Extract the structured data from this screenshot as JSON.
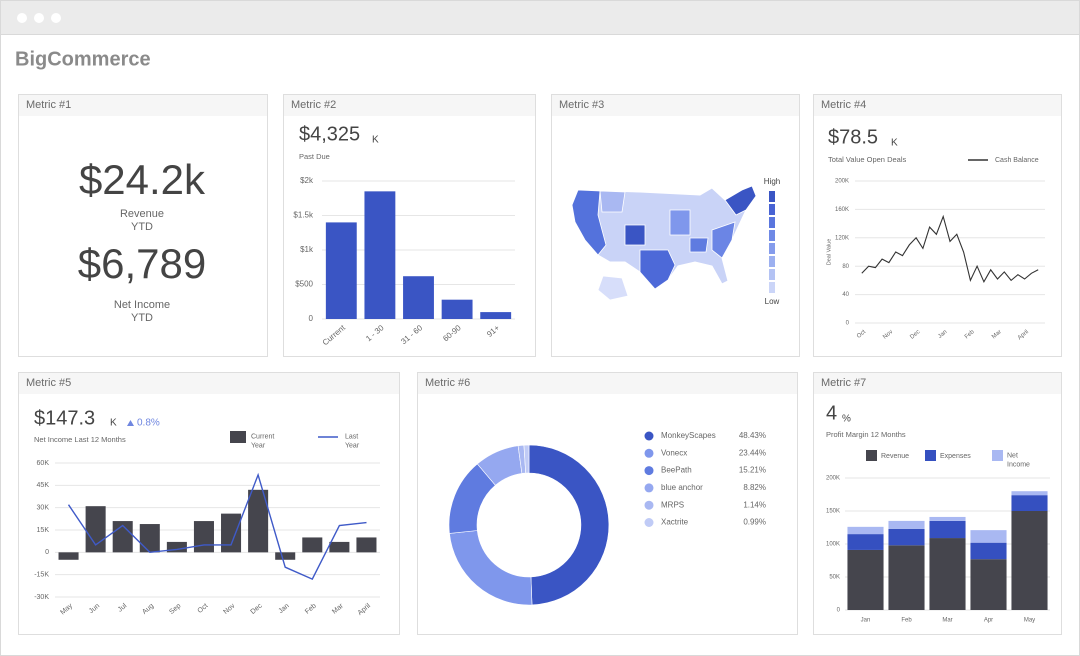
{
  "window": {
    "app_title": "BigCommerce"
  },
  "cards": [
    {
      "title": "Metric #1"
    },
    {
      "title": "Metric #2"
    },
    {
      "title": "Metric #3"
    },
    {
      "title": "Metric #4"
    },
    {
      "title": "Metric #5"
    },
    {
      "title": "Metric #6"
    },
    {
      "title": "Metric #7"
    }
  ],
  "metric1": {
    "items": [
      {
        "value": "$24.2k",
        "label": "Revenue",
        "sublabel": "YTD"
      },
      {
        "value": "$6,789",
        "label": "Net Income",
        "sublabel": "YTD"
      }
    ]
  },
  "map": {
    "legend_high": "High",
    "legend_low": "Low"
  },
  "chart_data": [
    {
      "type": "bar",
      "headline": "$4,325",
      "headline_unit": "K",
      "subtitle": "Past Due",
      "categories": [
        "Current",
        "1 - 30",
        "31 - 60",
        "60-90",
        "91+"
      ],
      "values": [
        1400,
        1850,
        620,
        280,
        100
      ],
      "color": "#3a55c4",
      "ylim": [
        0,
        2000
      ],
      "yticks": [
        0,
        {
          "value": 500,
          "label": "$500"
        },
        {
          "value": 1000,
          "label": "$1k"
        },
        {
          "value": 1500,
          "label": "$1.5k"
        },
        {
          "value": 2000,
          "label": "$2k"
        }
      ],
      "grid": true
    },
    {
      "type": "line",
      "headline": "$78.5",
      "headline_unit": "K",
      "subtitle": "Total Value Open Deals",
      "y_label": "Deal Value",
      "x": [
        0,
        0.25,
        0.5,
        0.75,
        1,
        1.25,
        1.5,
        1.75,
        2,
        2.25,
        2.5,
        2.75,
        3,
        3.25,
        3.5,
        3.75,
        4,
        4.25,
        4.5,
        4.75,
        5,
        5.25,
        5.5,
        5.75,
        6,
        6.25,
        6.5
      ],
      "series": [
        {
          "name": "Cash Balance",
          "color": "#333333",
          "values": [
            70,
            80,
            78,
            90,
            85,
            100,
            95,
            110,
            120,
            105,
            135,
            125,
            150,
            115,
            125,
            100,
            60,
            80,
            58,
            75,
            62,
            72,
            60,
            68,
            62,
            70,
            75
          ]
        }
      ],
      "xlim": [
        -0.25,
        6.75
      ],
      "xticks": [
        {
          "value": 0,
          "label": "Oct"
        },
        {
          "value": 1,
          "label": "Nov"
        },
        {
          "value": 2,
          "label": "Dec"
        },
        {
          "value": 3,
          "label": "Jan"
        },
        {
          "value": 4,
          "label": "Feb"
        },
        {
          "value": 5,
          "label": "Mar"
        },
        {
          "value": 6,
          "label": "April"
        }
      ],
      "ylim": [
        0,
        200
      ],
      "yticks": [
        0,
        40,
        80,
        {
          "value": 120,
          "label": "120K"
        },
        {
          "value": 160,
          "label": "160K"
        },
        {
          "value": 200,
          "label": "200K"
        }
      ],
      "grid": true
    },
    {
      "type": "bar",
      "headline": "$147.3",
      "headline_unit": "K",
      "change": "0.8%",
      "subtitle": "Net Income Last 12 Months",
      "categories": [
        "May",
        "Jun",
        "Jul",
        "Aug",
        "Sep",
        "Oct",
        "Nov",
        "Dec",
        "Jan",
        "Feb",
        "Mar",
        "April"
      ],
      "series": [
        {
          "name": "Current Year",
          "type": "bar",
          "color": "#45454d",
          "values": [
            -5,
            31,
            21,
            19,
            7,
            21,
            26,
            42,
            -5,
            10,
            7,
            10
          ]
        },
        {
          "name": "Last Year",
          "type": "line",
          "color": "#3f5ac8",
          "values": [
            32,
            5,
            18,
            0,
            2,
            5,
            5,
            52,
            -10,
            -18,
            18,
            20
          ]
        }
      ],
      "ylim": [
        -30,
        60
      ],
      "yticks": [
        {
          "value": -30,
          "label": "-30K"
        },
        {
          "value": -15,
          "label": "-15K"
        },
        0,
        {
          "value": 15,
          "label": "15K"
        },
        {
          "value": 30,
          "label": "30K"
        },
        {
          "value": 45,
          "label": "45K"
        },
        {
          "value": 60,
          "label": "60K"
        }
      ],
      "grid": true
    },
    {
      "type": "donut",
      "categories": [
        "MonkeyScapes",
        "Vonecx",
        "BeePath",
        "blue anchor",
        "MRPS",
        "Xactrite"
      ],
      "values": [
        48.43,
        23.44,
        15.21,
        8.82,
        1.14,
        0.99
      ],
      "value_labels": [
        "48.43%",
        "23.44%",
        "15.21%",
        "8.82%",
        "1.14%",
        "0.99%"
      ],
      "colors": [
        "#3a55c4",
        "#7f97ec",
        "#5f7be0",
        "#95a8f0",
        "#a9b8f2",
        "#c0cbf6"
      ]
    },
    {
      "type": "bar",
      "stacked": true,
      "headline": "4",
      "headline_unit": "%",
      "subtitle": "Profit Margin 12 Months",
      "categories": [
        "Jan",
        "Feb",
        "Mar",
        "Apr",
        "May"
      ],
      "series": [
        {
          "name": "Revenue",
          "color": "#45454d",
          "values": [
            91,
            98,
            109,
            77,
            150
          ]
        },
        {
          "name": "Expenses",
          "color": "#3550c0",
          "values": [
            24,
            25,
            26,
            25,
            24
          ]
        },
        {
          "name": "Net Income",
          "color": "#a9b8f2",
          "values": [
            11,
            12,
            6,
            19,
            6
          ]
        }
      ],
      "ylim": [
        0,
        200
      ],
      "yticks": [
        0,
        {
          "value": 50,
          "label": "50K"
        },
        {
          "value": 100,
          "label": "100K"
        },
        {
          "value": 150,
          "label": "150K"
        },
        {
          "value": 200,
          "label": "200K"
        }
      ],
      "grid": true
    }
  ]
}
